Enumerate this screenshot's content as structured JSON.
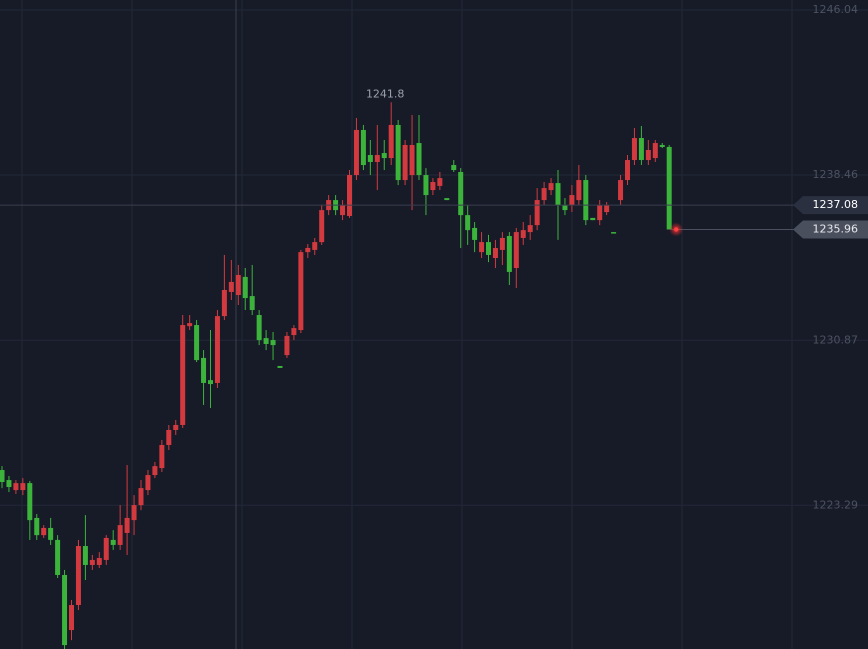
{
  "chart_data": {
    "type": "candlestick",
    "ylim": [
      1216.69,
      1246.5
    ],
    "yticks": [
      1246.04,
      1238.46,
      1230.87,
      1223.29
    ],
    "grid": true,
    "up_color": "#d23a3f",
    "down_color": "#3cb43c",
    "high_label": 1241.8,
    "crosshair_value": 1237.08,
    "last_price": 1235.96,
    "open": [
      1224.91,
      1224.45,
      1223.99,
      1223.99,
      1224.31,
      1222.71,
      1221.92,
      1222.25,
      1221.7,
      1220.09,
      1217.56,
      1218.71,
      1221.42,
      1220.55,
      1220.55,
      1220.78,
      1221.7,
      1221.47,
      1222.02,
      1222.61,
      1223.3,
      1223.99,
      1224.68,
      1225.0,
      1226.06,
      1226.75,
      1226.98,
      1231.52,
      1231.57,
      1230.06,
      1229.04,
      1228.91,
      1231.98,
      1233.09,
      1232.95,
      1233.78,
      1232.9,
      1232.03,
      1230.97,
      1230.88,
      1229.69,
      1230.19,
      1231.11,
      1231.34,
      1234.92,
      1235.02,
      1235.38,
      1236.85,
      1237.31,
      1236.62,
      1236.58,
      1238.46,
      1240.53,
      1239.38,
      1239.06,
      1239.47,
      1239.24,
      1240.76,
      1238.23,
      1238.46,
      1239.93,
      1238.46,
      1237.77,
      1237.96,
      1237.4,
      1238.92,
      1238.6,
      1236.62,
      1236.03,
      1234.92,
      1235.38,
      1234.65,
      1235.02,
      1235.66,
      1234.19,
      1235.57,
      1235.84,
      1236.16,
      1237.31,
      1237.77,
      1238.09,
      1237.08,
      1237.08,
      1237.31,
      1238.23,
      1236.49,
      1236.39,
      1236.76,
      1235.84,
      1237.31,
      1238.23,
      1239.15,
      1240.16,
      1239.15,
      1239.24,
      1239.84,
      1239.75
    ],
    "high": [
      1225.09,
      1224.64,
      1224.45,
      1224.54,
      1224.41,
      1222.89,
      1222.38,
      1222.71,
      1221.92,
      1220.32,
      1218.94,
      1221.7,
      1222.84,
      1221.01,
      1221.14,
      1221.92,
      1222.15,
      1223.3,
      1225.14,
      1223.76,
      1224.45,
      1224.91,
      1225.28,
      1226.29,
      1226.98,
      1227.21,
      1232.03,
      1232.03,
      1231.8,
      1230.42,
      1231.34,
      1232.26,
      1234.79,
      1234.56,
      1234.33,
      1234.19,
      1234.33,
      1232.26,
      1231.34,
      1231.25,
      1229.69,
      1231.25,
      1231.57,
      1235.02,
      1235.29,
      1235.57,
      1237.08,
      1237.54,
      1237.54,
      1237.31,
      1238.69,
      1241.08,
      1240.76,
      1240.07,
      1240.76,
      1240.07,
      1241.8,
      1240.99,
      1240.07,
      1241.22,
      1241.22,
      1238.78,
      1238.32,
      1238.6,
      1237.4,
      1239.15,
      1238.78,
      1237.08,
      1236.3,
      1235.84,
      1235.71,
      1235.48,
      1235.84,
      1235.84,
      1236.03,
      1236.3,
      1236.62,
      1237.86,
      1238.14,
      1238.32,
      1238.69,
      1237.4,
      1238.0,
      1238.92,
      1238.46,
      1236.49,
      1237.31,
      1237.22,
      1235.84,
      1238.46,
      1239.38,
      1240.62,
      1240.71,
      1240.07,
      1240.07,
      1239.93,
      1239.84
    ],
    "low": [
      1224.08,
      1223.9,
      1223.81,
      1223.76,
      1221.7,
      1221.7,
      1221.79,
      1221.47,
      1219.95,
      1216.69,
      1217.1,
      1218.48,
      1219.86,
      1220.32,
      1220.41,
      1220.55,
      1221.24,
      1221.24,
      1221.01,
      1221.92,
      1223.07,
      1223.76,
      1224.54,
      1224.82,
      1225.83,
      1226.52,
      1226.84,
      1231.34,
      1229.87,
      1227.9,
      1227.76,
      1228.68,
      1231.8,
      1232.72,
      1232.49,
      1232.26,
      1232.03,
      1230.65,
      1230.42,
      1229.96,
      1229.6,
      1230.06,
      1230.88,
      1231.2,
      1234.65,
      1234.79,
      1235.25,
      1236.62,
      1236.62,
      1236.39,
      1236.49,
      1238.23,
      1238.69,
      1238.46,
      1237.77,
      1238.69,
      1238.92,
      1238.0,
      1238.0,
      1236.85,
      1238.23,
      1236.62,
      1237.54,
      1237.77,
      1237.31,
      1238.6,
      1235.11,
      1235.25,
      1234.92,
      1234.65,
      1234.46,
      1234.19,
      1234.33,
      1233.41,
      1233.27,
      1235.25,
      1235.48,
      1235.93,
      1237.08,
      1237.54,
      1235.48,
      1236.62,
      1236.76,
      1237.08,
      1236.16,
      1236.39,
      1236.16,
      1236.62,
      1235.8,
      1237.08,
      1238.0,
      1238.92,
      1238.92,
      1238.92,
      1239.06,
      1239.7,
      1235.96
    ],
    "close": [
      1224.36,
      1224.13,
      1224.31,
      1224.31,
      1222.61,
      1221.92,
      1222.25,
      1221.7,
      1220.09,
      1216.87,
      1218.71,
      1221.42,
      1220.55,
      1220.78,
      1220.87,
      1221.79,
      1221.47,
      1222.38,
      1222.71,
      1223.3,
      1224.08,
      1224.68,
      1225.09,
      1226.06,
      1226.75,
      1226.98,
      1231.57,
      1231.66,
      1229.96,
      1228.91,
      1228.86,
      1231.98,
      1233.18,
      1233.55,
      1233.87,
      1232.81,
      1232.26,
      1230.88,
      1230.7,
      1230.65,
      1229.6,
      1231.07,
      1231.43,
      1234.92,
      1235.11,
      1235.38,
      1236.85,
      1237.31,
      1236.85,
      1237.08,
      1238.46,
      1240.53,
      1238.92,
      1239.06,
      1239.38,
      1239.24,
      1240.76,
      1238.23,
      1239.84,
      1239.84,
      1238.46,
      1237.54,
      1238.14,
      1238.32,
      1237.31,
      1238.69,
      1236.62,
      1235.93,
      1235.48,
      1235.38,
      1234.79,
      1235.11,
      1235.57,
      1234.01,
      1235.84,
      1235.93,
      1236.16,
      1237.31,
      1237.86,
      1238.09,
      1237.08,
      1236.85,
      1237.54,
      1238.23,
      1236.39,
      1236.39,
      1237.08,
      1237.08,
      1235.8,
      1238.23,
      1239.15,
      1240.16,
      1239.15,
      1239.61,
      1239.93,
      1239.75,
      1235.96
    ]
  }
}
